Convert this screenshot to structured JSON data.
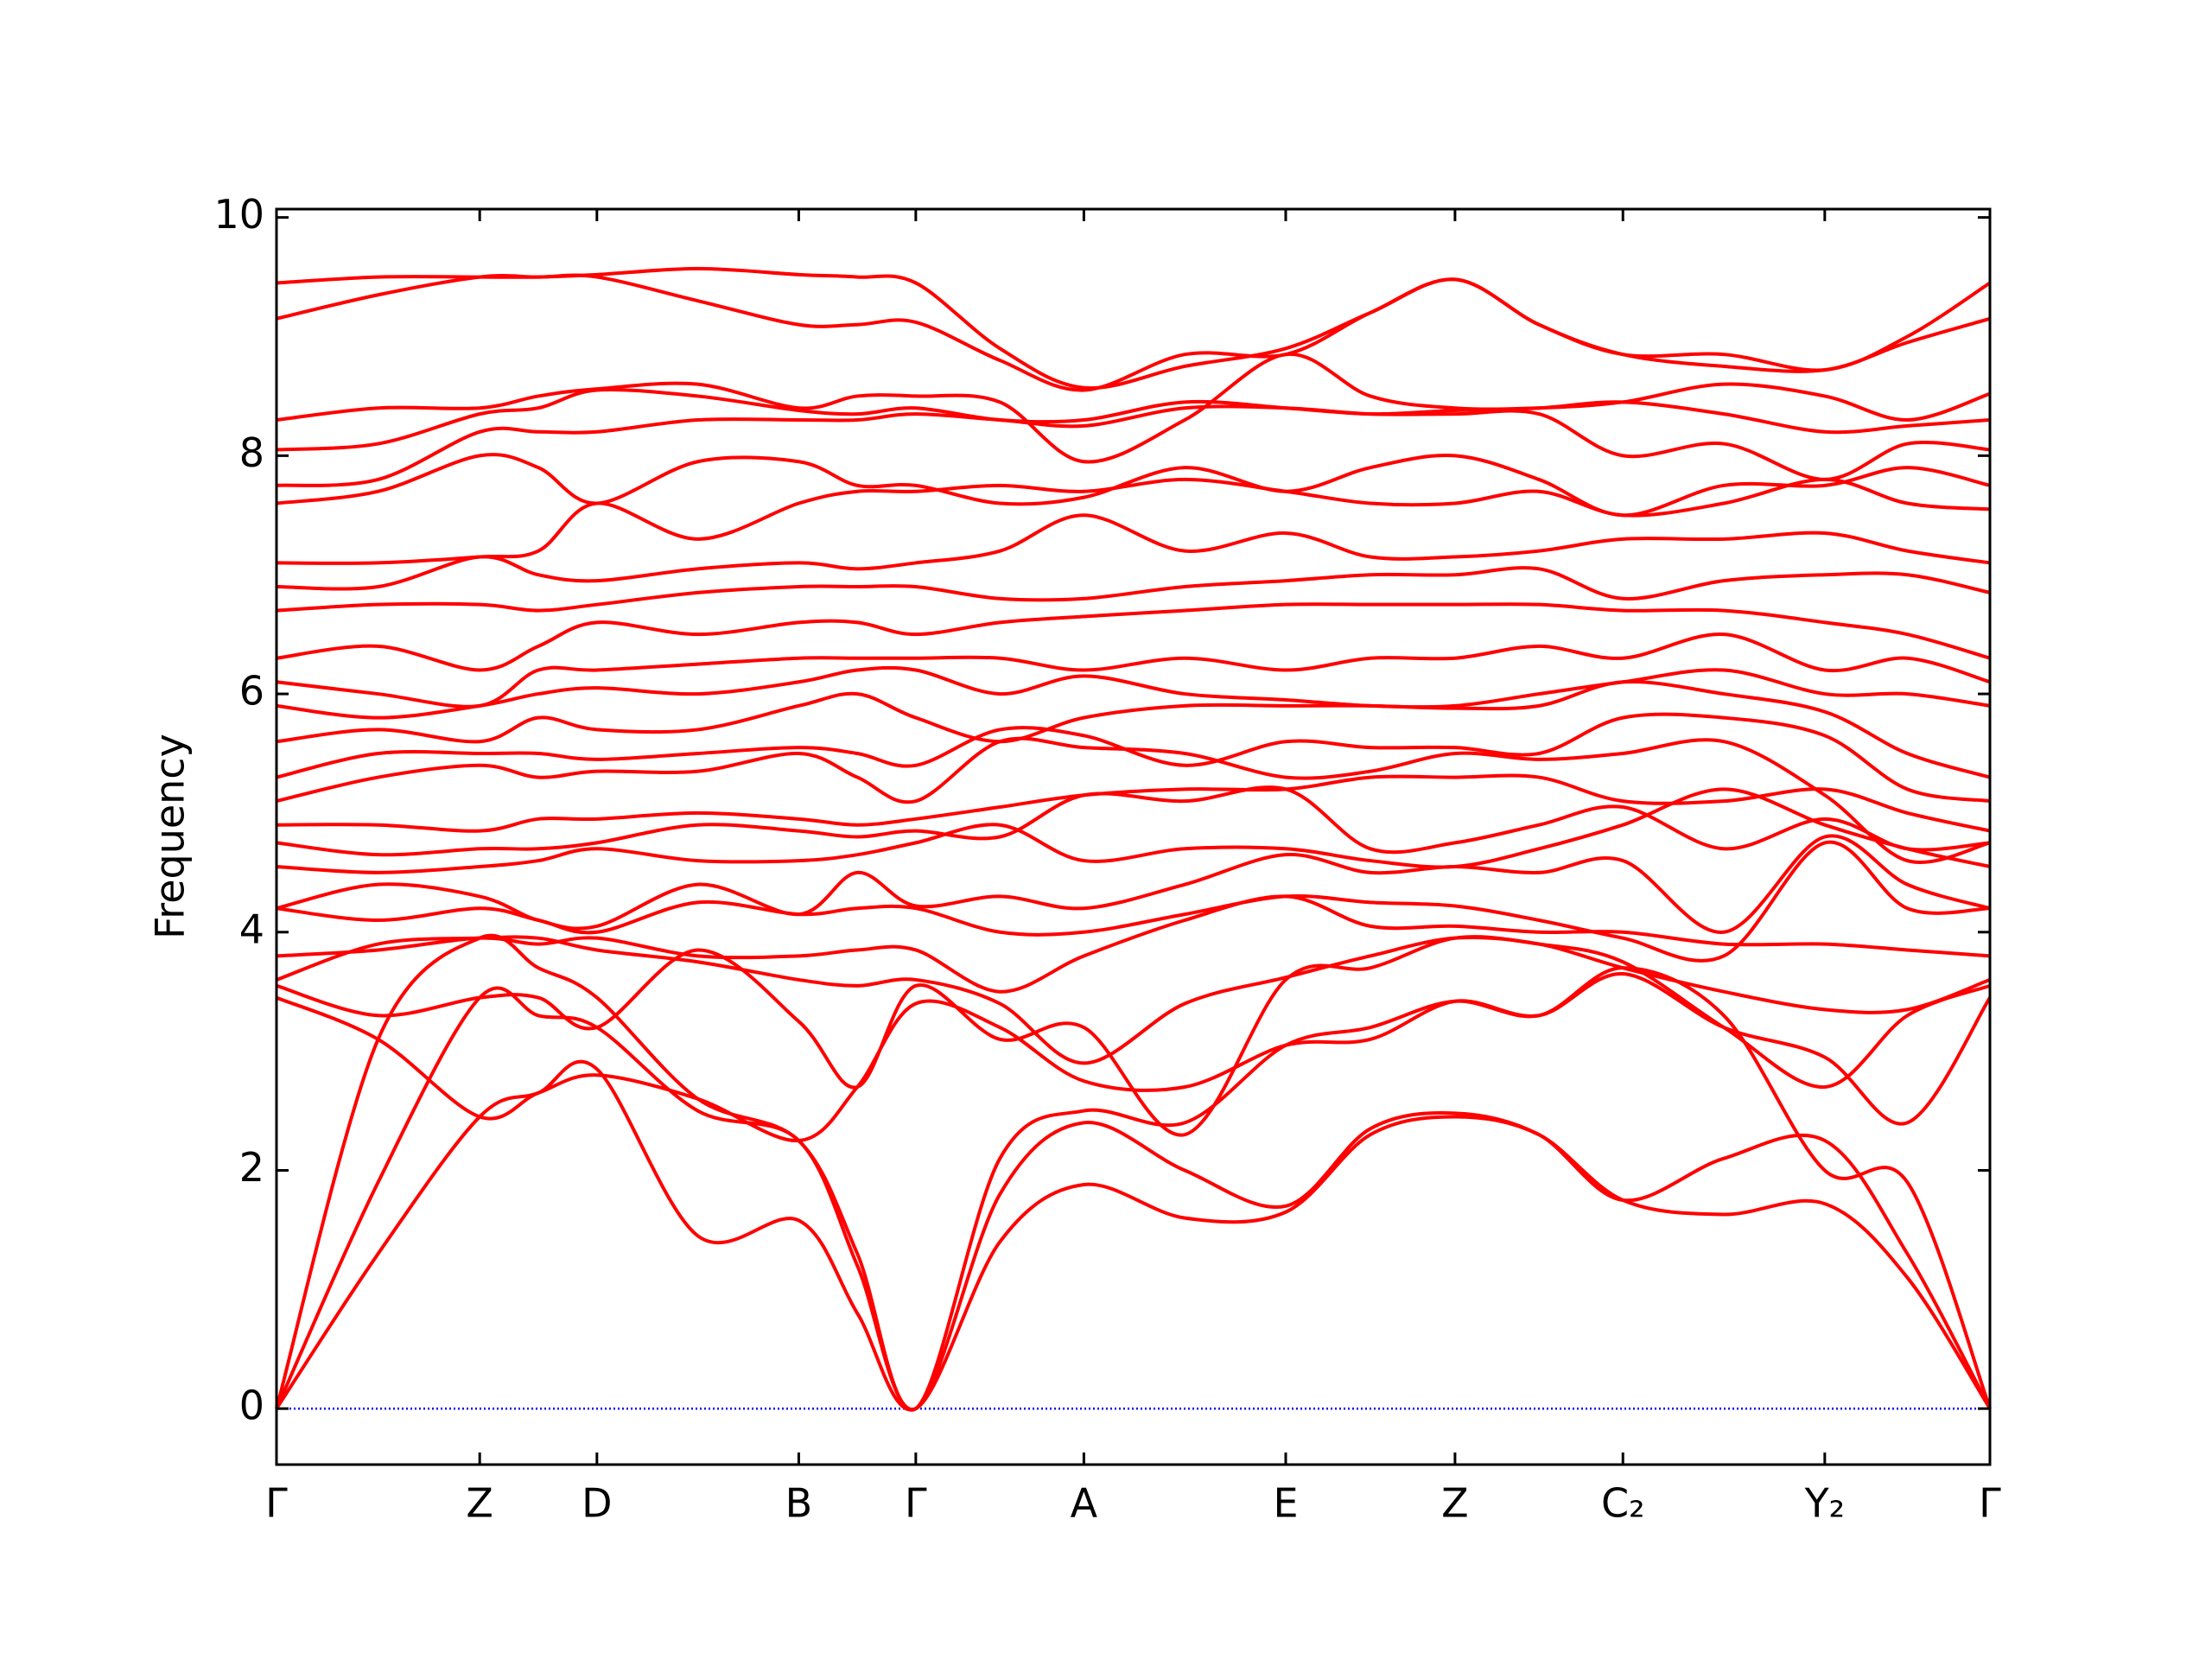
{
  "chart_data": {
    "type": "line",
    "ylabel": "Frequency",
    "color": "#ff0000",
    "reference_line": {
      "y": 0,
      "color": "#0000ff"
    },
    "xlim": [
      0,
      10
    ],
    "ylim": [
      -0.47,
      10.07
    ],
    "yticks": [
      0,
      2,
      4,
      6,
      8,
      10
    ],
    "xticks": [
      {
        "value": 0,
        "label": "Γ"
      },
      {
        "value": 1.186,
        "label": "Z"
      },
      {
        "value": 1.87,
        "label": "D"
      },
      {
        "value": 3.048,
        "label": "B"
      },
      {
        "value": 3.731,
        "label": "Γ"
      },
      {
        "value": 4.712,
        "label": "A"
      },
      {
        "value": 5.89,
        "label": "E"
      },
      {
        "value": 6.878,
        "label": "Z"
      },
      {
        "value": 7.858,
        "label": "C₂"
      },
      {
        "value": 9.036,
        "label": "Y₂"
      },
      {
        "value": 10,
        "label": "Γ"
      }
    ],
    "x": [
      0,
      0.593,
      1.186,
      1.528,
      1.87,
      2.459,
      3.048,
      3.39,
      3.731,
      4.222,
      4.712,
      5.301,
      5.89,
      6.384,
      6.878,
      7.368,
      7.858,
      8.447,
      9.036,
      9.518,
      10
    ],
    "series": [
      {
        "values": [
          0,
          1.3,
          2.45,
          2.65,
          2.85,
          1.45,
          1.58,
          0.8,
          0,
          1.4,
          1.88,
          1.6,
          1.65,
          2.3,
          2.45,
          2.3,
          1.75,
          1.63,
          1.72,
          1.1,
          0
        ]
      },
      {
        "values": [
          0,
          1.9,
          3.45,
          3.3,
          3.2,
          2.5,
          2.25,
          1.2,
          0,
          1.8,
          2.4,
          2.0,
          1.7,
          2.35,
          2.48,
          2.3,
          1.75,
          2.1,
          2.25,
          1.3,
          0
        ]
      },
      {
        "values": [
          0,
          3.1,
          3.95,
          3.7,
          3.45,
          2.6,
          2.25,
          1.3,
          0,
          2.1,
          2.5,
          2.4,
          3.05,
          3.2,
          3.42,
          3.3,
          3.7,
          3.3,
          2.0,
          1.9,
          0
        ]
      },
      {
        "values": [
          3.45,
          3.1,
          2.45,
          2.65,
          2.8,
          2.6,
          2.25,
          2.7,
          3.4,
          3.2,
          2.75,
          2.7,
          3.05,
          3.1,
          3.42,
          3.3,
          3.65,
          3.2,
          2.95,
          2.4,
          3.45
        ]
      },
      {
        "values": [
          3.55,
          3.3,
          3.45,
          3.45,
          3.2,
          3.85,
          3.25,
          2.7,
          3.55,
          3.1,
          3.2,
          2.3,
          3.6,
          3.7,
          3.95,
          3.9,
          3.75,
          3.2,
          2.7,
          3.3,
          3.55
        ]
      },
      {
        "values": [
          3.6,
          3.9,
          3.95,
          3.95,
          3.85,
          3.75,
          3.6,
          3.55,
          3.6,
          3.4,
          2.9,
          3.4,
          3.62,
          3.8,
          3.95,
          3.9,
          3.7,
          3.5,
          3.35,
          3.35,
          3.6
        ]
      },
      {
        "values": [
          3.8,
          3.85,
          3.95,
          3.9,
          3.95,
          3.8,
          3.8,
          3.85,
          3.85,
          3.5,
          3.8,
          4.1,
          4.3,
          4.05,
          4.05,
          4.0,
          4.0,
          3.9,
          3.9,
          3.85,
          3.8
        ]
      },
      {
        "values": [
          4.2,
          4.1,
          4.2,
          4.1,
          4.0,
          4.25,
          4.15,
          4.2,
          4.2,
          4.0,
          4.0,
          4.15,
          4.3,
          4.25,
          4.22,
          4.1,
          3.95,
          3.8,
          4.75,
          4.2,
          4.2
        ]
      },
      {
        "values": [
          4.2,
          4.4,
          4.3,
          4.1,
          4.05,
          4.4,
          4.15,
          4.5,
          4.22,
          4.3,
          4.2,
          4.4,
          4.65,
          4.5,
          4.55,
          4.5,
          4.6,
          4.0,
          4.8,
          4.4,
          4.2
        ]
      },
      {
        "values": [
          4.55,
          4.5,
          4.55,
          4.6,
          4.7,
          4.6,
          4.6,
          4.65,
          4.75,
          4.9,
          4.6,
          4.7,
          4.7,
          4.6,
          4.55,
          4.7,
          4.9,
          5.2,
          4.9,
          4.7,
          4.55
        ]
      },
      {
        "values": [
          4.75,
          4.65,
          4.7,
          4.7,
          4.75,
          4.9,
          4.85,
          4.8,
          4.85,
          4.8,
          5.15,
          5.1,
          5.2,
          4.7,
          4.75,
          4.9,
          5.05,
          4.7,
          4.95,
          4.7,
          4.75
        ]
      },
      {
        "values": [
          4.9,
          4.9,
          4.85,
          4.95,
          4.95,
          5.0,
          4.95,
          4.9,
          4.95,
          5.05,
          5.15,
          5.2,
          5.2,
          5.3,
          5.3,
          5.3,
          5.1,
          5.1,
          5.2,
          5.0,
          4.85
        ]
      },
      {
        "values": [
          5.1,
          5.3,
          5.4,
          5.3,
          5.35,
          5.35,
          5.5,
          5.3,
          5.1,
          5.6,
          5.55,
          5.5,
          5.3,
          5.35,
          5.5,
          5.45,
          5.5,
          5.6,
          5.15,
          4.6,
          4.75
        ]
      },
      {
        "values": [
          5.3,
          5.5,
          5.5,
          5.5,
          5.45,
          5.5,
          5.55,
          5.5,
          5.4,
          5.7,
          5.65,
          5.4,
          5.6,
          5.55,
          5.55,
          5.5,
          5.8,
          5.8,
          5.65,
          5.2,
          5.1
        ]
      },
      {
        "values": [
          5.6,
          5.7,
          5.6,
          5.8,
          5.7,
          5.7,
          5.9,
          6.0,
          5.8,
          5.6,
          5.8,
          5.9,
          5.9,
          5.9,
          5.88,
          5.9,
          6.1,
          6.0,
          5.85,
          5.5,
          5.3
        ]
      },
      {
        "values": [
          5.9,
          5.8,
          5.9,
          6.0,
          6.05,
          6.0,
          6.1,
          6.2,
          6.2,
          6.0,
          6.15,
          6.0,
          5.95,
          5.9,
          5.9,
          6.0,
          6.1,
          6.2,
          6.0,
          6.0,
          5.9
        ]
      },
      {
        "values": [
          6.1,
          6.0,
          5.9,
          6.2,
          6.2,
          6.25,
          6.3,
          6.3,
          6.3,
          6.3,
          6.2,
          6.3,
          6.2,
          6.3,
          6.3,
          6.4,
          6.3,
          6.5,
          6.2,
          6.3,
          6.1
        ]
      },
      {
        "values": [
          6.3,
          6.4,
          6.2,
          6.4,
          6.6,
          6.5,
          6.6,
          6.6,
          6.5,
          6.6,
          6.65,
          6.7,
          6.75,
          6.75,
          6.75,
          6.75,
          6.7,
          6.7,
          6.6,
          6.5,
          6.3
        ]
      },
      {
        "values": [
          6.7,
          6.75,
          6.75,
          6.7,
          6.75,
          6.85,
          6.9,
          6.9,
          6.9,
          6.8,
          6.8,
          6.9,
          6.95,
          7.0,
          7.0,
          7.05,
          6.8,
          6.95,
          7.0,
          7.0,
          6.85
        ]
      },
      {
        "values": [
          6.9,
          6.9,
          7.15,
          7.0,
          6.95,
          7.05,
          7.1,
          7.05,
          7.1,
          7.2,
          7.5,
          7.2,
          7.35,
          7.15,
          7.15,
          7.2,
          7.3,
          7.3,
          7.35,
          7.2,
          7.1
        ]
      },
      {
        "values": [
          7.1,
          7.1,
          7.15,
          7.2,
          7.6,
          7.3,
          7.6,
          7.7,
          7.7,
          7.75,
          7.7,
          7.8,
          7.7,
          7.6,
          7.6,
          7.7,
          7.5,
          7.6,
          7.8,
          7.6,
          7.55
        ]
      },
      {
        "values": [
          7.6,
          7.7,
          8.0,
          7.9,
          7.6,
          7.95,
          7.95,
          7.75,
          7.75,
          7.6,
          7.65,
          7.9,
          7.7,
          7.9,
          8.0,
          7.8,
          7.5,
          7.75,
          7.75,
          7.9,
          7.75
        ]
      },
      {
        "values": [
          7.75,
          7.8,
          8.2,
          8.2,
          8.2,
          8.3,
          8.3,
          8.3,
          8.35,
          8.3,
          8.25,
          8.4,
          8.4,
          8.35,
          8.35,
          8.35,
          8.0,
          8.1,
          7.8,
          8.1,
          8.05
        ]
      },
      {
        "values": [
          8.05,
          8.1,
          8.35,
          8.4,
          8.55,
          8.5,
          8.38,
          8.35,
          8.4,
          8.3,
          8.3,
          8.45,
          8.4,
          8.35,
          8.38,
          8.4,
          8.45,
          8.35,
          8.2,
          8.25,
          8.3
        ]
      },
      {
        "values": [
          8.3,
          8.4,
          8.4,
          8.5,
          8.56,
          8.6,
          8.4,
          8.5,
          8.5,
          8.45,
          7.95,
          8.3,
          8.85,
          8.5,
          8.4,
          8.4,
          8.45,
          8.6,
          8.5,
          8.3,
          8.52
        ]
      },
      {
        "values": [
          9.15,
          9.35,
          9.5,
          9.5,
          9.5,
          9.3,
          9.1,
          9.1,
          9.12,
          8.8,
          8.55,
          8.85,
          8.85,
          9.2,
          9.48,
          9.1,
          8.85,
          8.75,
          8.72,
          8.95,
          9.15
        ]
      },
      {
        "values": [
          9.45,
          9.5,
          9.5,
          9.5,
          9.52,
          9.57,
          9.52,
          9.5,
          9.45,
          8.9,
          8.57,
          8.75,
          8.9,
          9.2,
          9.48,
          9.1,
          8.85,
          8.85,
          8.72,
          9.0,
          9.45
        ]
      }
    ]
  }
}
